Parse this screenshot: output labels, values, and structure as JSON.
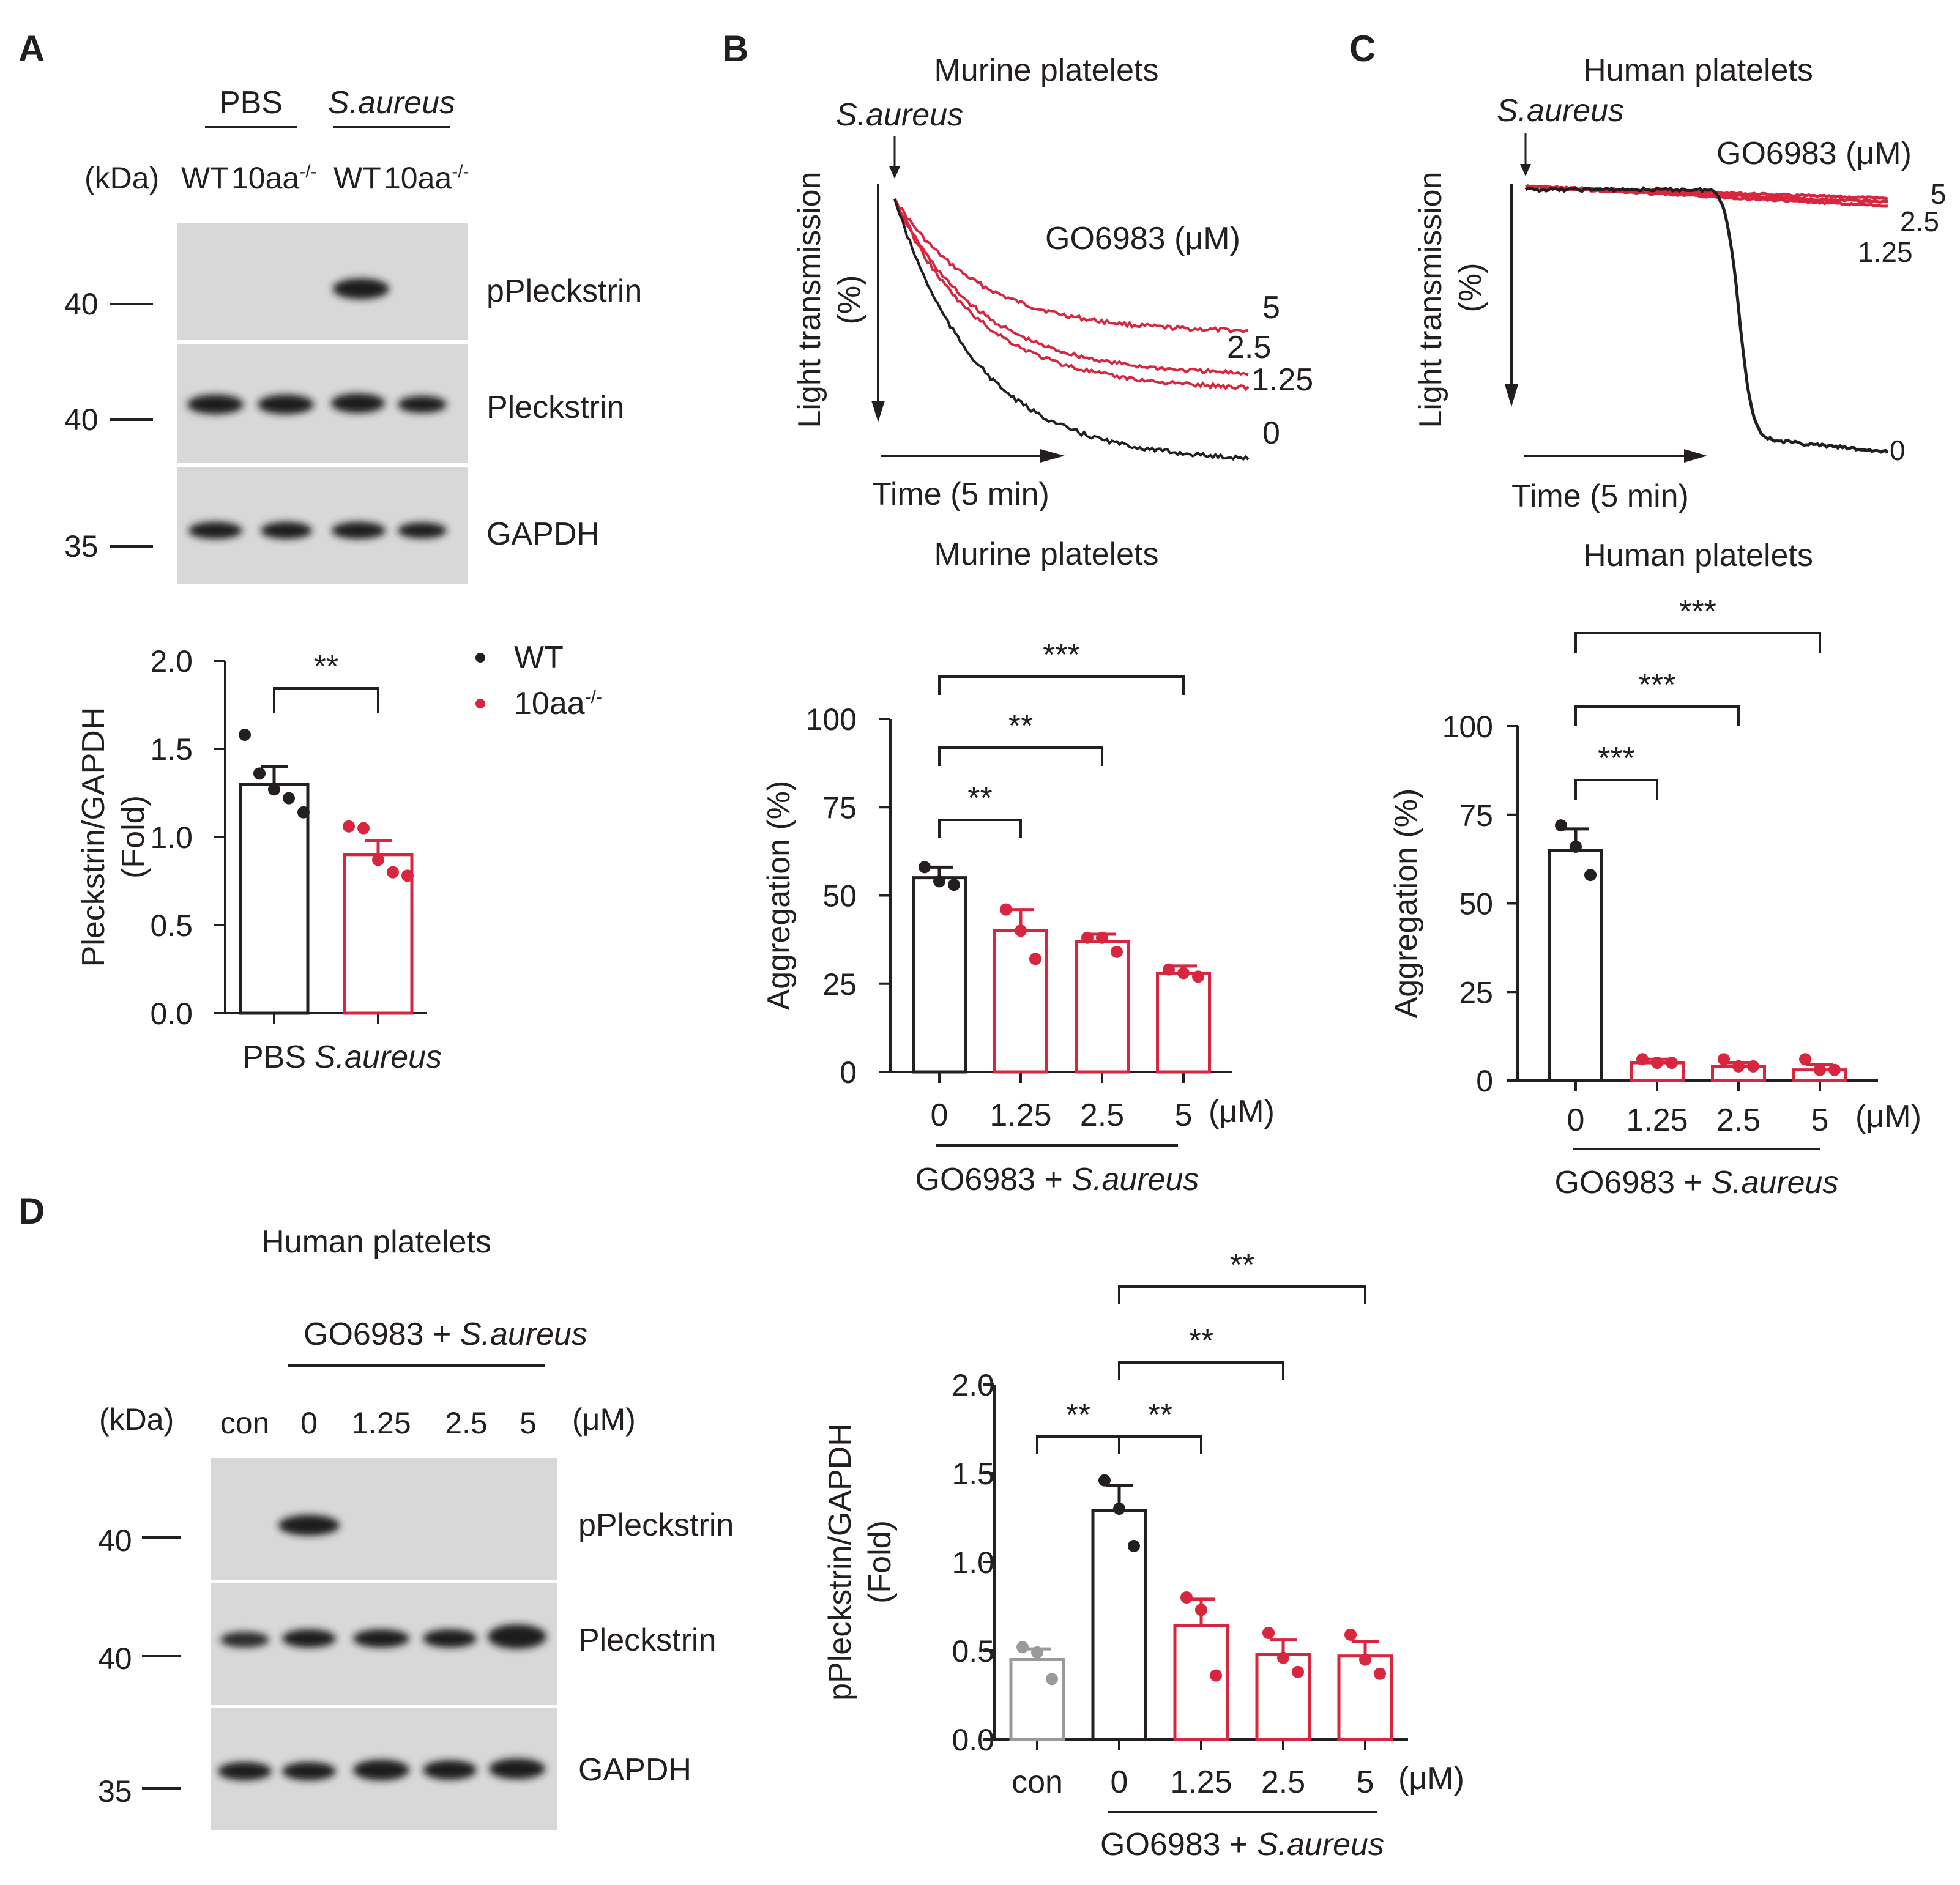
{
  "colors": {
    "black": "#231f20",
    "red": "#d7263d",
    "gray": "#9a9a9a",
    "blot_bg": "#d8d8d8",
    "band": "#1b1b1b"
  },
  "panel_letters": {
    "a": "A",
    "b": "B",
    "c": "C",
    "d": "D"
  },
  "units": {
    "kda": "(kDa)",
    "um": "(μM)",
    "um_alt": "(μM)"
  },
  "common": {
    "saureus": "S.aureus",
    "go6983": "GO6983",
    "go_plus": "GO6983 + ",
    "go_um": "GO6983 (μM)"
  },
  "panelA": {
    "group_labels": [
      "PBS",
      "S.aureus"
    ],
    "lane_wt": "WT",
    "lane_ko": "10aa",
    "lane_ko_sup": "-/-",
    "blot_rows": [
      "pPleckstrin",
      "Pleckstrin",
      "GAPDH"
    ],
    "mw_markers": [
      "40",
      "40",
      "35"
    ],
    "legend": [
      "WT",
      "10aa"
    ],
    "legend_sup": "-/-"
  },
  "panelB_trace": {
    "title": "Murine platelets",
    "ylabel_1": "Light transmission",
    "ylabel_2": "(%)",
    "xlabel": "Time (5 min)",
    "trace_labels": [
      "5",
      "2.5",
      "1.25",
      "0"
    ]
  },
  "panelC_trace": {
    "title": "Human platelets",
    "ylabel_1": "Light transmission",
    "ylabel_2": "(%)",
    "xlabel": "Time (5 min)",
    "trace_labels": [
      "5",
      "2.5",
      "1.25",
      "0"
    ]
  },
  "panelD_blot": {
    "title": "Human platelets",
    "lanes": [
      "con",
      "0",
      "1.25",
      "2.5",
      "5"
    ],
    "blot_rows": [
      "pPleckstrin",
      "Pleckstrin",
      "GAPDH"
    ],
    "mw_markers": [
      "40",
      "40",
      "35"
    ]
  },
  "chart_data": [
    {
      "id": "A",
      "type": "bar",
      "categories": [
        "PBS",
        "S.aureus"
      ],
      "italic_categories": [
        false,
        true
      ],
      "series": [
        {
          "name": "",
          "values": [
            1.3,
            0.9
          ],
          "sem": [
            0.1,
            0.08
          ],
          "points": [
            [
              1.58,
              1.36,
              1.27,
              1.22,
              1.14
            ],
            [
              1.06,
              1.05,
              0.87,
              0.8,
              0.78
            ]
          ]
        }
      ],
      "bar_colors": [
        "black",
        "red"
      ],
      "ylabel": "Pleckstrin/GAPDH",
      "ylabel2": "(Fold)",
      "ylim": [
        0,
        2.0
      ],
      "yticks": [
        "0.0",
        "0.5",
        "1.0",
        "1.5",
        "2.0"
      ],
      "significance": [
        {
          "from": 0,
          "to": 1,
          "label": "**"
        }
      ],
      "legend": "top-right",
      "grid": false
    },
    {
      "id": "B",
      "type": "bar",
      "title": "Murine platelets",
      "categories": [
        "0",
        "1.25",
        "2.5",
        "5"
      ],
      "series": [
        {
          "name": "",
          "values": [
            55,
            40,
            37,
            28
          ],
          "sem": [
            3,
            6,
            2,
            2
          ],
          "points": [
            [
              58,
              54,
              53
            ],
            [
              46,
              40,
              32
            ],
            [
              38,
              38,
              34
            ],
            [
              29,
              28,
              27
            ]
          ]
        }
      ],
      "bar_colors": [
        "black",
        "red",
        "red",
        "red"
      ],
      "ylabel": "Aggregation (%)",
      "ylim": [
        0,
        100
      ],
      "yticks": [
        "0",
        "25",
        "50",
        "75",
        "100"
      ],
      "unit": "(μM)",
      "group_label": "GO6983 + S.aureus",
      "significance": [
        {
          "from": 0,
          "to": 1,
          "label": "**"
        },
        {
          "from": 0,
          "to": 2,
          "label": "**"
        },
        {
          "from": 0,
          "to": 3,
          "label": "***"
        }
      ],
      "grid": false
    },
    {
      "id": "C",
      "type": "bar",
      "title": "Human platelets",
      "categories": [
        "0",
        "1.25",
        "2.5",
        "5"
      ],
      "series": [
        {
          "name": "",
          "values": [
            65,
            5,
            4,
            3
          ],
          "sem": [
            6,
            1,
            1,
            1.5
          ],
          "points": [
            [
              72,
              66,
              58
            ],
            [
              6,
              5,
              5
            ],
            [
              6,
              4,
              4
            ],
            [
              6,
              3,
              3
            ]
          ]
        }
      ],
      "bar_colors": [
        "black",
        "red",
        "red",
        "red"
      ],
      "ylabel": "Aggregation (%)",
      "ylim": [
        0,
        100
      ],
      "yticks": [
        "0",
        "25",
        "50",
        "75",
        "100"
      ],
      "unit": "(μM)",
      "group_label": "GO6983 + S.aureus",
      "significance": [
        {
          "from": 0,
          "to": 1,
          "label": "***"
        },
        {
          "from": 0,
          "to": 2,
          "label": "***"
        },
        {
          "from": 0,
          "to": 3,
          "label": "***"
        }
      ],
      "grid": false
    },
    {
      "id": "D",
      "type": "bar",
      "categories": [
        "con",
        "0",
        "1.25",
        "2.5",
        "5"
      ],
      "series": [
        {
          "name": "",
          "values": [
            0.45,
            1.29,
            0.64,
            0.48,
            0.47
          ],
          "sem": [
            0.06,
            0.14,
            0.15,
            0.08,
            0.08
          ],
          "points": [
            [
              0.52,
              0.49,
              0.34
            ],
            [
              1.46,
              1.3,
              1.09
            ],
            [
              0.8,
              0.73,
              0.36
            ],
            [
              0.6,
              0.46,
              0.38
            ],
            [
              0.59,
              0.45,
              0.37
            ]
          ]
        }
      ],
      "bar_colors": [
        "gray",
        "black",
        "red",
        "red",
        "red"
      ],
      "ylabel": "pPleckstrin/GAPDH",
      "ylabel2": "(Fold)",
      "ylim": [
        0,
        2.0
      ],
      "yticks": [
        "0.0",
        "0.5",
        "1.0",
        "1.5",
        "2.0"
      ],
      "unit": "(μM)",
      "group_label": "GO6983 + S.aureus",
      "significance": [
        {
          "from": 0,
          "to": 1,
          "label": "**"
        },
        {
          "from": 1,
          "to": 2,
          "label": "**"
        },
        {
          "from": 1,
          "to": 3,
          "label": "**"
        },
        {
          "from": 1,
          "to": 4,
          "label": "**"
        }
      ],
      "grid": false
    },
    {
      "id": "B-trace",
      "type": "line",
      "title": "Murine platelets",
      "xlabel": "Time (5 min)",
      "ylabel": "Light transmission (%)",
      "legend_title": "GO6983 (μM)",
      "series": [
        {
          "name": "5",
          "final_aggregation": 28
        },
        {
          "name": "2.5",
          "final_aggregation": 37
        },
        {
          "name": "1.25",
          "final_aggregation": 40
        },
        {
          "name": "0",
          "final_aggregation": 55
        }
      ]
    },
    {
      "id": "C-trace",
      "type": "line",
      "title": "Human platelets",
      "xlabel": "Time (5 min)",
      "ylabel": "Light transmission (%)",
      "legend_title": "GO6983 (μM)",
      "series": [
        {
          "name": "5",
          "final_aggregation": 3
        },
        {
          "name": "2.5",
          "final_aggregation": 4
        },
        {
          "name": "1.25",
          "final_aggregation": 5
        },
        {
          "name": "0",
          "final_aggregation": 65
        }
      ]
    }
  ]
}
